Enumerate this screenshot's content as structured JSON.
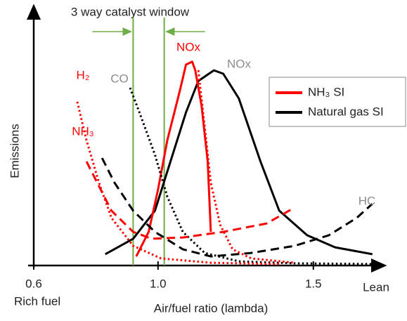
{
  "chart_data": {
    "type": "line",
    "title": "3 way catalyst window",
    "xlabel": "Air/fuel ratio (lambda)",
    "ylabel": "Emissions",
    "x_start_label": "Rich fuel",
    "x_end_label": "Lean",
    "xlim": [
      0.6,
      1.72
    ],
    "ylim": [
      0,
      100
    ],
    "xticks": [
      0.6,
      {
        "value": 1,
        "label": "1.0"
      },
      1.5
    ],
    "window": [
      0.92,
      1.02
    ],
    "window_color": "#70ad47",
    "legend": [
      {
        "name": "NH₃ SI",
        "color": "#ff0000"
      },
      {
        "name": "Natural gas SI",
        "color": "#000000"
      }
    ],
    "legend_position": "upper right",
    "series": [
      {
        "label": "NOx",
        "label_color": "#8c8c8c",
        "color": "#000000",
        "style": "solid",
        "x": [
          0.83,
          0.92,
          0.99,
          1.04,
          1.09,
          1.13,
          1.18,
          1.21,
          1.26,
          1.33,
          1.39,
          1.48,
          1.57,
          1.69
        ],
        "values": [
          4.6,
          10.9,
          22.3,
          42.3,
          62.3,
          75.1,
          79.4,
          78,
          68,
          42.3,
          22.3,
          12.3,
          7.4,
          4.6
        ]
      },
      {
        "label": "NOx",
        "label_color": "#ff0000",
        "color": "#ff0000",
        "style": "solid",
        "x": [
          0.93,
          0.97,
          1.0,
          1.03,
          1.07,
          1.09,
          1.11,
          1.12,
          1.14,
          1.16,
          1.17
        ],
        "values": [
          3.7,
          13.7,
          30.9,
          50.9,
          70.9,
          81.7,
          82.9,
          79.4,
          65.1,
          42.3,
          13.7
        ]
      },
      {
        "label": "CO",
        "label_color": "#8c8c8c",
        "color": "#000000",
        "style": "dotted",
        "x": [
          0.91,
          0.94,
          0.99,
          1.03,
          1.08,
          1.15,
          1.26,
          1.44,
          1.69
        ],
        "values": [
          72.3,
          62.3,
          45.1,
          28,
          13.7,
          5.1,
          1.7,
          0.9,
          0.6
        ]
      },
      {
        "label": "HC",
        "label_color": "#8c8c8c",
        "color": "#000000",
        "style": "dashed",
        "x": [
          0.82,
          0.86,
          0.92,
          0.99,
          1.08,
          1.17,
          1.3,
          1.44,
          1.55,
          1.64,
          1.69
        ],
        "values": [
          43.7,
          33.7,
          22.3,
          13.7,
          6.6,
          3.7,
          5.1,
          8,
          12.3,
          19.4,
          25.1
        ]
      },
      {
        "label": "H₂",
        "label_color": "#ff0000",
        "color": "#ff0000",
        "style": "dotted",
        "x": [
          0.74,
          0.77,
          0.81,
          0.85,
          0.92,
          1.01,
          1.17,
          1.39
        ],
        "values": [
          66.6,
          50.9,
          33.7,
          19.4,
          8,
          2.9,
          1.1,
          0.6
        ]
      },
      {
        "label": "NH₃",
        "label_color": "#ff0000",
        "color": "#ff0000",
        "style": "dashed",
        "x": [
          0.77,
          0.81,
          0.85,
          0.92,
          0.98,
          1.08,
          1.21,
          1.35,
          1.43
        ],
        "values": [
          42.3,
          32.3,
          22.3,
          13.7,
          10.9,
          11.4,
          13.7,
          17.1,
          22.9
        ]
      },
      {
        "color": "#ff0000",
        "style": "dotted",
        "x": [
          1.13,
          1.15,
          1.17,
          1.2,
          1.24,
          1.3,
          1.44
        ],
        "values": [
          79.4,
          56.6,
          33.7,
          16.6,
          6.6,
          2.9,
          1.1
        ]
      }
    ]
  }
}
